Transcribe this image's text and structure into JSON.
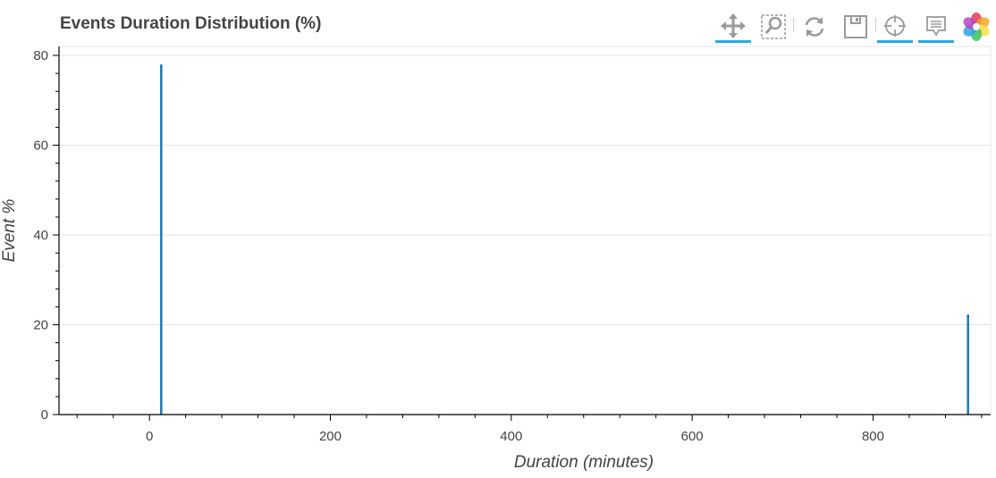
{
  "chart_data": {
    "type": "bar",
    "title": "Events Duration Distribution (%)",
    "xlabel": "Duration (minutes)",
    "ylabel": "Event %",
    "x": [
      13,
      905
    ],
    "values": [
      78,
      22.3
    ],
    "xlim": [
      -100,
      930
    ],
    "ylim": [
      0,
      82
    ],
    "xticks": [
      0,
      200,
      400,
      600,
      800
    ],
    "xtick_labels": [
      "0",
      "200",
      "400",
      "600",
      "800"
    ],
    "yticks": [
      0,
      20,
      40,
      60,
      80
    ],
    "ytick_labels": [
      "0",
      "20",
      "40",
      "60",
      "80"
    ],
    "grid": true,
    "bar_color": "#1f77b4"
  },
  "toolbar": {
    "tools": [
      "pan-icon",
      "box-zoom-icon",
      "reset-icon",
      "save-icon",
      "crosshair-icon",
      "hover-icon",
      "bokeh-logo-icon"
    ],
    "accent_color": "#26aae1"
  }
}
